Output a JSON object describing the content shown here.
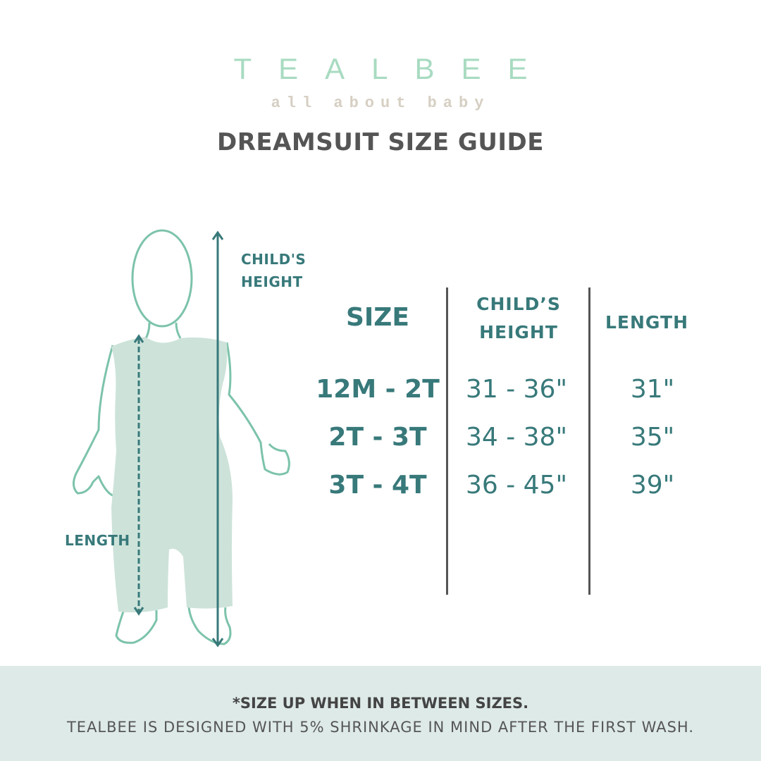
{
  "brand": {
    "logo": "TEALBEE",
    "tagline": "all about baby"
  },
  "title": "DREAMSUIT SIZE GUIDE",
  "figure": {
    "height_label_1": "CHILD'S",
    "height_label_2": "HEIGHT",
    "length_label": "LENGTH"
  },
  "table": {
    "headers": {
      "size": "SIZE",
      "height_1": "CHILD’S",
      "height_2": "HEIGHT",
      "length": "LENGTH"
    },
    "rows": [
      {
        "size": "12M - 2T",
        "height": "31 - 36\"",
        "length": "31\""
      },
      {
        "size": "2T - 3T",
        "height": "34 - 38\"",
        "length": "35\""
      },
      {
        "size": "3T - 4T",
        "height": "36 - 45\"",
        "length": "39\""
      }
    ]
  },
  "footer": {
    "note": "*SIZE UP WHEN IN BETWEEN SIZES.",
    "shrinkage": "TEALBEE IS DESIGNED WITH 5% SHRINKAGE IN MIND AFTER THE FIRST WASH."
  },
  "colors": {
    "teal": "#38797a",
    "mint": "#a8dbc1",
    "suit": "#cde3da",
    "footer_bg": "#deeae8",
    "title": "#555555"
  }
}
